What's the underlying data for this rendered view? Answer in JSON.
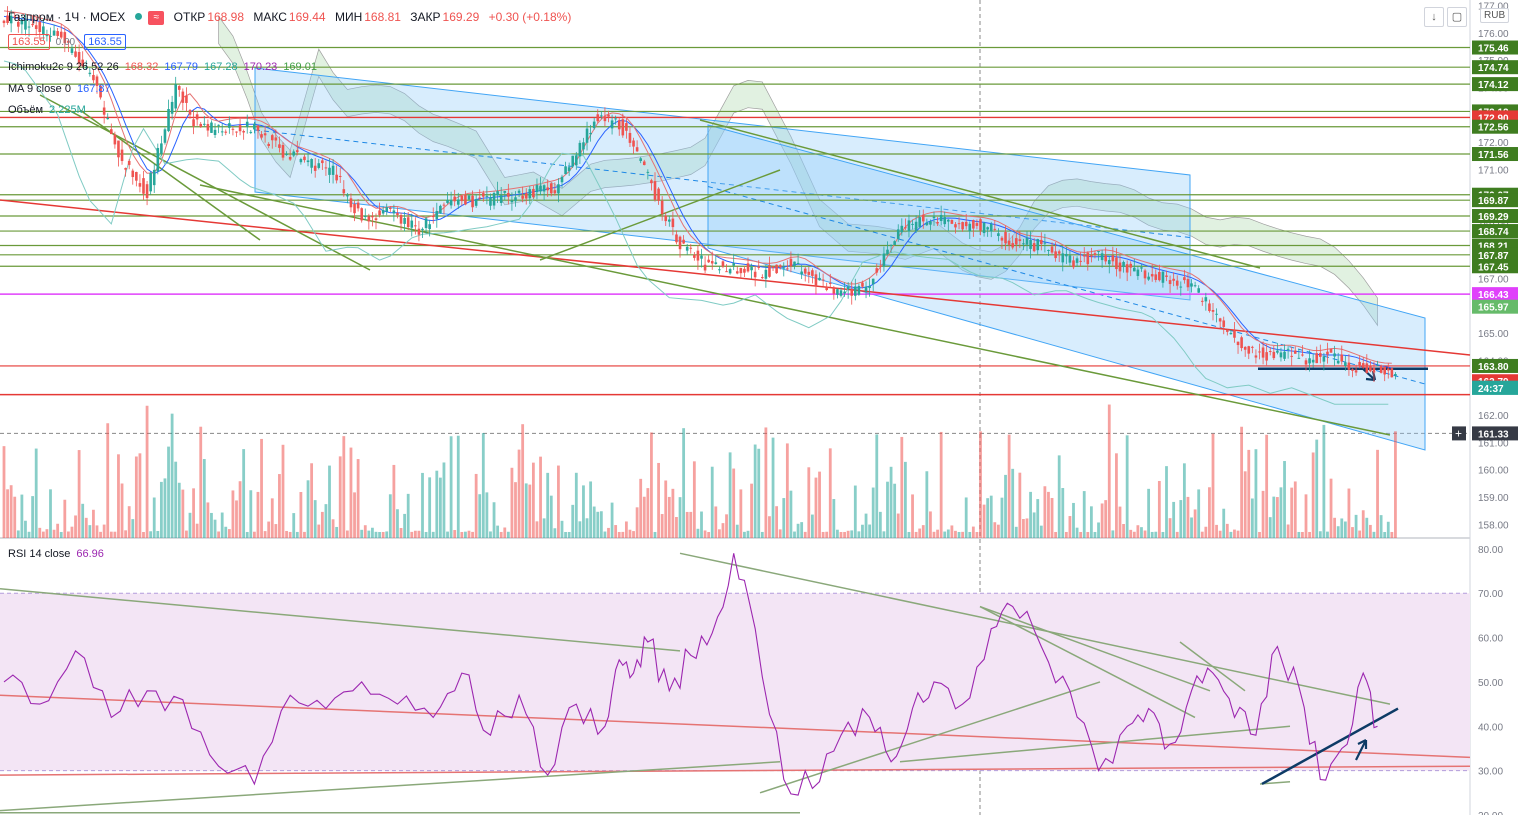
{
  "header": {
    "symbol": "Газпром · 1Ч · MOEX",
    "ohlc": [
      {
        "k": "ОТКР",
        "v": "168.98"
      },
      {
        "k": "МАКС",
        "v": "169.44"
      },
      {
        "k": "МИН",
        "v": "168.81"
      },
      {
        "k": "ЗАКР",
        "v": "169.29"
      },
      {
        "k": "",
        "v": "+0.30 (+0.18%)"
      }
    ],
    "bid": "163.55",
    "spread": "0.00",
    "ask": "163.55",
    "currency": "RUB"
  },
  "indicators": {
    "ichimoku": {
      "name": "Ichimoku2c 9 26 52 26",
      "values": [
        "168.32",
        "167.79",
        "167.28",
        "170.23",
        "169.01"
      ]
    },
    "ma": {
      "name": "MA 9 close 0",
      "value": "167.87"
    },
    "volume": {
      "name": "Объём",
      "value": "2.225M"
    },
    "rsi": {
      "name": "RSI 14 close",
      "value": "66.96"
    }
  },
  "colors": {
    "bull": "#26a69a",
    "bear": "#ef5350",
    "channel": "#90caf9",
    "green_line": "#6a9a3a",
    "red_line": "#e53935",
    "magenta": "#e040fb",
    "rsi_line": "#9c27b0",
    "rsi_band": "#f3e5f5",
    "cloud": "#c8e6c9"
  },
  "chart_data": [
    {
      "type": "candlestick",
      "title": "Газпром · 1Ч · MOEX",
      "ylim": [
        157.5,
        177.2
      ],
      "y_ticks": [
        "177.00",
        "176.00",
        "175.00",
        "174.00",
        "173.00",
        "172.00",
        "171.00",
        "170.00",
        "169.00",
        "168.00",
        "167.00",
        "166.00",
        "165.00",
        "164.00",
        "163.00",
        "162.00",
        "161.00",
        "160.00",
        "159.00",
        "158.00"
      ],
      "close_path": [
        [
          0,
          176.5
        ],
        [
          15,
          176
        ],
        [
          25,
          174.2
        ],
        [
          33,
          171.2
        ],
        [
          40,
          170.2
        ],
        [
          48,
          173.9
        ],
        [
          55,
          172.4
        ],
        [
          63,
          172.6
        ],
        [
          70,
          172.5
        ],
        [
          78,
          171.6
        ],
        [
          85,
          171.3
        ],
        [
          92,
          170.9
        ],
        [
          100,
          169.2
        ],
        [
          108,
          169.4
        ],
        [
          116,
          168.8
        ],
        [
          125,
          169.8
        ],
        [
          135,
          169.9
        ],
        [
          145,
          170.1
        ],
        [
          155,
          170.4
        ],
        [
          165,
          172.8
        ],
        [
          172,
          172.7
        ],
        [
          180,
          170.7
        ],
        [
          188,
          168.4
        ],
        [
          196,
          167.5
        ],
        [
          205,
          167.4
        ],
        [
          212,
          167.2
        ],
        [
          220,
          167.6
        ],
        [
          228,
          166.8
        ],
        [
          235,
          166.4
        ],
        [
          242,
          166.9
        ],
        [
          250,
          168.8
        ],
        [
          258,
          169.2
        ],
        [
          266,
          169.0
        ],
        [
          274,
          168.9
        ],
        [
          282,
          168.3
        ],
        [
          290,
          168.2
        ],
        [
          298,
          167.6
        ],
        [
          306,
          167.8
        ],
        [
          314,
          167.4
        ],
        [
          322,
          167.1
        ],
        [
          330,
          166.9
        ],
        [
          338,
          165.9
        ],
        [
          345,
          164.6
        ],
        [
          352,
          164.2
        ],
        [
          358,
          164.3
        ],
        [
          364,
          164.0
        ],
        [
          370,
          164.2
        ],
        [
          376,
          163.9
        ],
        [
          382,
          163.6
        ]
      ],
      "price_labels": [
        {
          "text": "175.46",
          "kind": "green"
        },
        {
          "text": "174.74",
          "kind": "green"
        },
        {
          "text": "174.12",
          "kind": "green"
        },
        {
          "text": "173.12",
          "kind": "green"
        },
        {
          "text": "172.90",
          "kind": "red"
        },
        {
          "text": "172.56",
          "kind": "green"
        },
        {
          "text": "171.56",
          "kind": "green"
        },
        {
          "text": "170.07",
          "kind": "green"
        },
        {
          "text": "169.87",
          "kind": "green"
        },
        {
          "text": "169.29",
          "kind": "green"
        },
        {
          "text": "168.74",
          "kind": "green"
        },
        {
          "text": "168.21",
          "kind": "green"
        },
        {
          "text": "167.87",
          "kind": "green"
        },
        {
          "text": "167.45",
          "kind": "green"
        },
        {
          "text": "166.43",
          "kind": "magenta"
        },
        {
          "text": "165.97",
          "kind": "lime"
        },
        {
          "text": "163.80",
          "kind": "green"
        },
        {
          "text": "163.79",
          "kind": "red"
        },
        {
          "text": "163.55",
          "kind": "teal"
        },
        {
          "text": "24:37",
          "kind": "teal"
        },
        {
          "text": "161.33",
          "kind": "dark"
        }
      ]
    },
    {
      "type": "line",
      "title": "RSI 14 close",
      "ylim": [
        20,
        82
      ],
      "y_ticks": [
        "80.00",
        "70.00",
        "60.00",
        "50.00",
        "40.00",
        "30.00",
        "20.00"
      ],
      "band": [
        30,
        70
      ],
      "x": [
        0,
        10,
        20,
        30,
        40,
        50,
        60,
        70,
        80,
        90,
        100,
        110,
        120,
        128,
        136,
        144,
        152,
        160,
        168,
        172,
        176,
        180,
        186,
        192,
        198,
        204,
        210,
        218,
        226,
        234,
        242,
        248,
        254,
        260,
        268,
        276,
        282,
        290,
        298,
        306,
        314,
        320,
        326,
        332,
        338,
        344,
        350,
        356,
        362,
        368,
        374,
        380,
        384
      ],
      "values": [
        50,
        45,
        57,
        42,
        48,
        46,
        31,
        27,
        47,
        44,
        50,
        45,
        42,
        52,
        38,
        47,
        29,
        45,
        40,
        55,
        52,
        59,
        48,
        56,
        61,
        79,
        62,
        28,
        26,
        38,
        42,
        32,
        44,
        50,
        45,
        62,
        67,
        58,
        48,
        30,
        40,
        44,
        36,
        48,
        52,
        42,
        38,
        58,
        49,
        28,
        35,
        52,
        40
      ]
    }
  ]
}
